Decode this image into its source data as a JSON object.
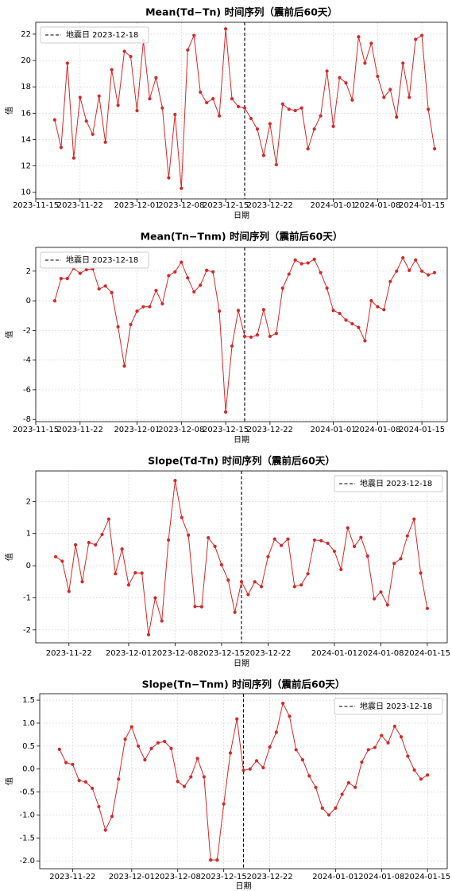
{
  "chart_data": [
    {
      "type": "line",
      "title": "Mean(Td−Tn) 时间序列（震前后60天）",
      "xlabel": "日期",
      "ylabel": "值",
      "color": "#d62728",
      "grid": true,
      "legend": "upper left",
      "vline": {
        "x": "2023-12-18",
        "label": "地震日 2023-12-18",
        "color": "#000000",
        "style": "dashed"
      },
      "x": [
        "2023-11-18",
        "2023-11-19",
        "2023-11-20",
        "2023-11-21",
        "2023-11-22",
        "2023-11-23",
        "2023-11-24",
        "2023-11-25",
        "2023-11-26",
        "2023-11-27",
        "2023-11-28",
        "2023-11-29",
        "2023-11-30",
        "2023-12-01",
        "2023-12-02",
        "2023-12-03",
        "2023-12-04",
        "2023-12-05",
        "2023-12-06",
        "2023-12-07",
        "2023-12-08",
        "2023-12-09",
        "2023-12-10",
        "2023-12-11",
        "2023-12-12",
        "2023-12-13",
        "2023-12-14",
        "2023-12-15",
        "2023-12-16",
        "2023-12-17",
        "2023-12-18",
        "2023-12-19",
        "2023-12-20",
        "2023-12-21",
        "2023-12-22",
        "2023-12-23",
        "2023-12-24",
        "2023-12-25",
        "2023-12-26",
        "2023-12-27",
        "2023-12-28",
        "2023-12-29",
        "2023-12-30",
        "2023-12-31",
        "2024-01-01",
        "2024-01-02",
        "2024-01-03",
        "2024-01-04",
        "2024-01-05",
        "2024-01-06",
        "2024-01-07",
        "2024-01-08",
        "2024-01-09",
        "2024-01-10",
        "2024-01-11",
        "2024-01-12",
        "2024-01-13",
        "2024-01-14",
        "2024-01-15",
        "2024-01-16",
        "2024-01-17"
      ],
      "values": [
        15.5,
        13.4,
        19.8,
        12.6,
        17.2,
        15.4,
        14.4,
        17.3,
        13.8,
        19.3,
        16.6,
        20.7,
        20.3,
        16.2,
        21.5,
        17.1,
        18.7,
        16.4,
        11.1,
        15.9,
        10.3,
        20.8,
        21.9,
        17.6,
        16.8,
        17.1,
        15.8,
        22.4,
        17.1,
        16.5,
        16.4,
        15.6,
        14.8,
        12.8,
        15.2,
        12.1,
        16.7,
        16.3,
        16.2,
        16.4,
        13.3,
        14.8,
        15.8,
        19.2,
        15.0,
        18.7,
        18.3,
        17.0,
        21.8,
        19.8,
        21.3,
        18.8,
        17.2,
        17.8,
        15.7,
        19.8,
        17.2,
        21.6,
        21.9,
        16.3,
        13.3
      ],
      "xlim": [
        "2023-11-15",
        "2024-01-19"
      ],
      "xticks": [
        "2023-11-15",
        "2023-11-22",
        "2023-12-01",
        "2023-12-08",
        "2023-12-15",
        "2023-12-22",
        "2024-01-01",
        "2024-01-08",
        "2024-01-15"
      ],
      "ylim": [
        9.5,
        22.9
      ],
      "yticks": [
        10,
        12,
        14,
        16,
        18,
        20,
        22
      ]
    },
    {
      "type": "line",
      "title": "Mean(Tn−Tnm) 时间序列（震前后60天）",
      "xlabel": "日期",
      "ylabel": "值",
      "color": "#d62728",
      "grid": true,
      "legend": "upper left",
      "vline": {
        "x": "2023-12-18",
        "label": "地震日 2023-12-18",
        "color": "#000000",
        "style": "dashed"
      },
      "x": [
        "2023-11-18",
        "2023-11-19",
        "2023-11-20",
        "2023-11-21",
        "2023-11-22",
        "2023-11-23",
        "2023-11-24",
        "2023-11-25",
        "2023-11-26",
        "2023-11-27",
        "2023-11-28",
        "2023-11-29",
        "2023-11-30",
        "2023-12-01",
        "2023-12-02",
        "2023-12-03",
        "2023-12-04",
        "2023-12-05",
        "2023-12-06",
        "2023-12-07",
        "2023-12-08",
        "2023-12-09",
        "2023-12-10",
        "2023-12-11",
        "2023-12-12",
        "2023-12-13",
        "2023-12-14",
        "2023-12-15",
        "2023-12-16",
        "2023-12-17",
        "2023-12-18",
        "2023-12-19",
        "2023-12-20",
        "2023-12-21",
        "2023-12-22",
        "2023-12-23",
        "2023-12-24",
        "2023-12-25",
        "2023-12-26",
        "2023-12-27",
        "2023-12-28",
        "2023-12-29",
        "2023-12-30",
        "2023-12-31",
        "2024-01-01",
        "2024-01-02",
        "2024-01-03",
        "2024-01-04",
        "2024-01-05",
        "2024-01-06",
        "2024-01-07",
        "2024-01-08",
        "2024-01-09",
        "2024-01-10",
        "2024-01-11",
        "2024-01-12",
        "2024-01-13",
        "2024-01-14",
        "2024-01-15",
        "2024-01-16",
        "2024-01-17"
      ],
      "values": [
        0.0,
        1.5,
        1.5,
        2.2,
        1.85,
        2.1,
        2.15,
        0.8,
        1.0,
        0.55,
        -1.75,
        -4.4,
        -1.6,
        -0.7,
        -0.4,
        -0.4,
        0.7,
        -0.2,
        1.7,
        1.95,
        2.6,
        1.55,
        0.6,
        1.05,
        2.05,
        1.95,
        -0.7,
        -7.5,
        -3.05,
        -0.65,
        -2.4,
        -2.45,
        -2.3,
        -0.6,
        -2.4,
        -2.2,
        0.85,
        1.8,
        2.75,
        2.5,
        2.55,
        2.8,
        1.9,
        0.85,
        -0.65,
        -0.85,
        -1.3,
        -1.55,
        -1.8,
        -2.7,
        0.0,
        -0.4,
        -0.6,
        1.3,
        2.0,
        2.9,
        2.05,
        2.75,
        2.0,
        1.75,
        1.9
      ],
      "xlim": [
        "2023-11-15",
        "2024-01-19"
      ],
      "xticks": [
        "2023-11-15",
        "2023-11-22",
        "2023-12-01",
        "2023-12-08",
        "2023-12-15",
        "2023-12-22",
        "2024-01-01",
        "2024-01-08",
        "2024-01-15"
      ],
      "ylim": [
        -8.15,
        3.6
      ],
      "yticks": [
        -8,
        -6,
        -4,
        -2,
        0,
        2
      ]
    },
    {
      "type": "line",
      "title": "Slope(Td-Tn) 时间序列（震前后60天）",
      "xlabel": "日期",
      "ylabel": "值",
      "color": "#d62728",
      "grid": true,
      "legend": "upper right",
      "vline": {
        "x": "2023-12-18",
        "label": "地震日 2023-12-18",
        "color": "#000000",
        "style": "dashed"
      },
      "x": [
        "2023-11-20",
        "2023-11-21",
        "2023-11-22",
        "2023-11-23",
        "2023-11-24",
        "2023-11-25",
        "2023-11-26",
        "2023-11-27",
        "2023-11-28",
        "2023-11-29",
        "2023-11-30",
        "2023-12-01",
        "2023-12-02",
        "2023-12-03",
        "2023-12-04",
        "2023-12-05",
        "2023-12-06",
        "2023-12-07",
        "2023-12-08",
        "2023-12-09",
        "2023-12-10",
        "2023-12-11",
        "2023-12-12",
        "2023-12-13",
        "2023-12-14",
        "2023-12-15",
        "2023-12-16",
        "2023-12-17",
        "2023-12-18",
        "2023-12-19",
        "2023-12-20",
        "2023-12-21",
        "2023-12-22",
        "2023-12-23",
        "2023-12-24",
        "2023-12-25",
        "2023-12-26",
        "2023-12-27",
        "2023-12-28",
        "2023-12-29",
        "2023-12-30",
        "2023-12-31",
        "2024-01-01",
        "2024-01-02",
        "2024-01-03",
        "2024-01-04",
        "2024-01-05",
        "2024-01-06",
        "2024-01-07",
        "2024-01-08",
        "2024-01-09",
        "2024-01-10",
        "2024-01-11",
        "2024-01-12",
        "2024-01-13",
        "2024-01-14",
        "2024-01-15"
      ],
      "values": [
        0.28,
        0.14,
        -0.8,
        0.65,
        -0.5,
        0.72,
        0.65,
        0.97,
        1.45,
        -0.25,
        0.52,
        -0.6,
        -0.22,
        -0.23,
        -2.15,
        -1.0,
        -1.72,
        0.8,
        2.65,
        1.5,
        0.95,
        -1.27,
        -1.28,
        0.87,
        0.6,
        0.03,
        -0.45,
        -1.45,
        -0.5,
        -0.9,
        -0.5,
        -0.65,
        0.28,
        0.83,
        0.63,
        0.83,
        -0.65,
        -0.6,
        -0.25,
        0.8,
        0.78,
        0.7,
        0.45,
        -0.12,
        1.18,
        0.6,
        0.88,
        0.3,
        -1.03,
        -0.82,
        -1.22,
        0.07,
        0.22,
        0.93,
        1.45,
        -0.23,
        -1.33
      ],
      "xlim": [
        "2023-11-17",
        "2024-01-18"
      ],
      "xticks": [
        "2023-11-22",
        "2023-12-01",
        "2023-12-08",
        "2023-12-15",
        "2023-12-22",
        "2024-01-01",
        "2024-01-08",
        "2024-01-15"
      ],
      "ylim": [
        -2.4,
        2.95
      ],
      "yticks": [
        -2,
        -1,
        0,
        1,
        2
      ]
    },
    {
      "type": "line",
      "title": "Slope(Tn−Tnm) 时间序列（震前后60天）",
      "xlabel": "日期",
      "ylabel": "值",
      "color": "#d62728",
      "grid": true,
      "legend": "upper right",
      "vline": {
        "x": "2023-12-18",
        "label": "地震日 2023-12-18",
        "color": "#000000",
        "style": "dashed"
      },
      "x": [
        "2023-11-20",
        "2023-11-21",
        "2023-11-22",
        "2023-11-23",
        "2023-11-24",
        "2023-11-25",
        "2023-11-26",
        "2023-11-27",
        "2023-11-28",
        "2023-11-29",
        "2023-11-30",
        "2023-12-01",
        "2023-12-02",
        "2023-12-03",
        "2023-12-04",
        "2023-12-05",
        "2023-12-06",
        "2023-12-07",
        "2023-12-08",
        "2023-12-09",
        "2023-12-10",
        "2023-12-11",
        "2023-12-12",
        "2023-12-13",
        "2023-12-14",
        "2023-12-15",
        "2023-12-16",
        "2023-12-17",
        "2023-12-18",
        "2023-12-19",
        "2023-12-20",
        "2023-12-21",
        "2023-12-22",
        "2023-12-23",
        "2023-12-24",
        "2023-12-25",
        "2023-12-26",
        "2023-12-27",
        "2023-12-28",
        "2023-12-29",
        "2023-12-30",
        "2023-12-31",
        "2024-01-01",
        "2024-01-02",
        "2024-01-03",
        "2024-01-04",
        "2024-01-05",
        "2024-01-06",
        "2024-01-07",
        "2024-01-08",
        "2024-01-09",
        "2024-01-10",
        "2024-01-11",
        "2024-01-12",
        "2024-01-13",
        "2024-01-14",
        "2024-01-15"
      ],
      "values": [
        0.43,
        0.14,
        0.1,
        -0.25,
        -0.28,
        -0.42,
        -0.82,
        -1.33,
        -1.03,
        -0.22,
        0.65,
        0.92,
        0.5,
        0.2,
        0.45,
        0.57,
        0.6,
        0.45,
        -0.27,
        -0.38,
        -0.17,
        0.23,
        -0.17,
        -1.98,
        -1.98,
        -0.76,
        0.35,
        1.09,
        -0.03,
        0.0,
        0.18,
        0.03,
        0.48,
        0.8,
        1.43,
        1.15,
        0.42,
        0.2,
        -0.15,
        -0.4,
        -0.85,
        -1.0,
        -0.85,
        -0.55,
        -0.3,
        -0.4,
        0.15,
        0.42,
        0.47,
        0.73,
        0.57,
        0.93,
        0.7,
        0.28,
        -0.02,
        -0.22,
        -0.13
      ],
      "xlim": [
        "2023-11-17",
        "2024-01-18"
      ],
      "xticks": [
        "2023-11-22",
        "2023-12-01",
        "2023-12-08",
        "2023-12-15",
        "2023-12-22",
        "2024-01-01",
        "2024-01-08",
        "2024-01-15"
      ],
      "ylim": [
        -2.17,
        1.64
      ],
      "yticks": [
        {
          "value": -2,
          "label": "-2.0"
        },
        {
          "value": -1.5,
          "label": "-1.5"
        },
        {
          "value": -1,
          "label": "-1.0"
        },
        {
          "value": -0.5,
          "label": "-0.5"
        },
        {
          "value": 0,
          "label": "0.0"
        },
        {
          "value": 0.5,
          "label": "0.5"
        },
        {
          "value": 1,
          "label": "1.0"
        },
        {
          "value": 1.5,
          "label": "1.5"
        }
      ]
    }
  ]
}
